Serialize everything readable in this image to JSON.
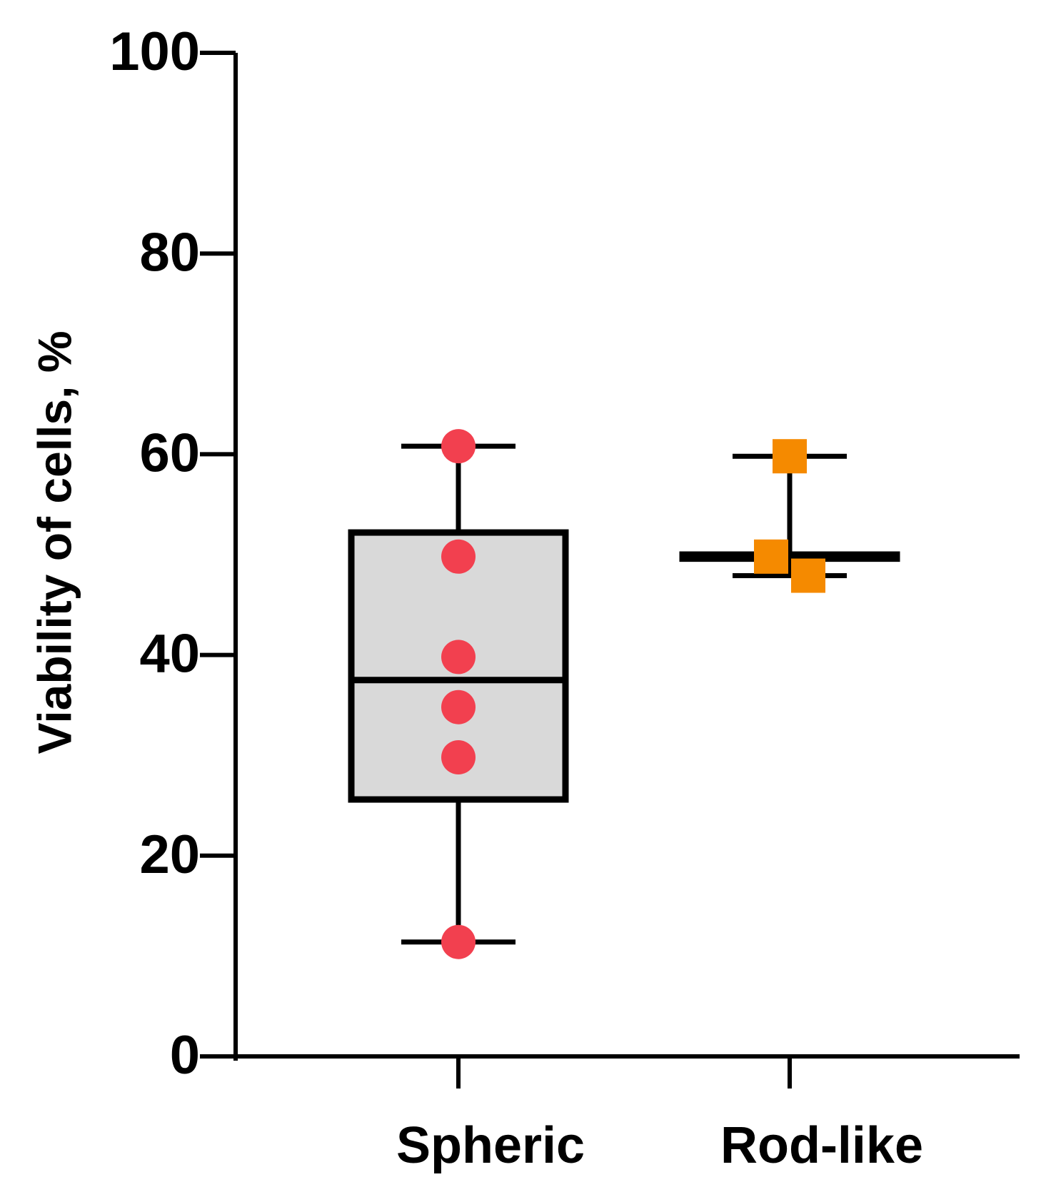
{
  "chart_data": {
    "type": "box",
    "y_label": "Viability of cells, %",
    "categories": [
      "Spheric",
      "Rod-like"
    ],
    "boxes": [
      {
        "min": 11.4,
        "q1": 25.6,
        "median": 37.5,
        "q3": 52.2,
        "max": 60.8,
        "fill": "#d9d9d9",
        "marker": "circle",
        "color": "#f2404f",
        "points": [
          60.8,
          49.8,
          39.8,
          34.8,
          29.8,
          11.4
        ]
      },
      {
        "min": 47.9,
        "q1": 49.6,
        "median": 49.8,
        "q3": 50,
        "max": 59.8,
        "fill": "none",
        "marker": "square",
        "color": "#f58a00",
        "points": [
          59.8,
          49.8,
          47.9
        ]
      }
    ],
    "ylim": [
      0,
      100
    ],
    "yticks": [
      0,
      20,
      40,
      60,
      80,
      100
    ]
  }
}
